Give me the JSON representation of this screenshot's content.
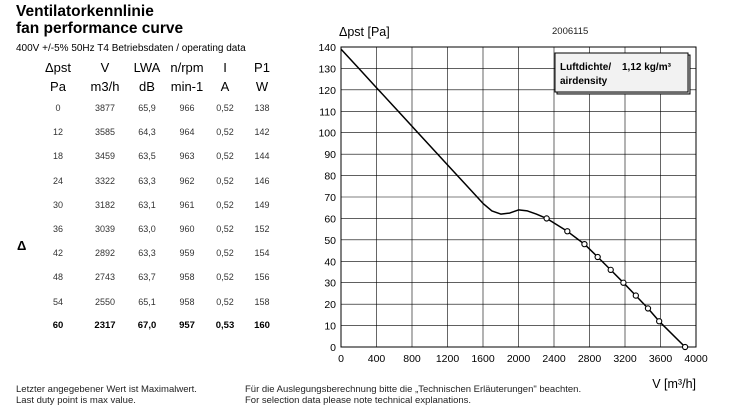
{
  "header": {
    "title_de": "Ventilatorkennlinie",
    "title_en": "fan performance curve",
    "subtitle": "400V +/-5% 50Hz T4  Betriebsdaten / operating data",
    "delta_marker": "Δ"
  },
  "table": {
    "headers": [
      "Δpst",
      "V",
      "LWA",
      "n/rpm",
      "I",
      "P1"
    ],
    "units": [
      "Pa",
      "m3/h",
      "dB",
      "min-1",
      "A",
      "W"
    ],
    "rows": [
      [
        "0",
        "3877",
        "65,9",
        "966",
        "0,52",
        "138"
      ],
      [
        "12",
        "3585",
        "64,3",
        "964",
        "0,52",
        "142"
      ],
      [
        "18",
        "3459",
        "63,5",
        "963",
        "0,52",
        "144"
      ],
      [
        "24",
        "3322",
        "63,3",
        "962",
        "0,52",
        "146"
      ],
      [
        "30",
        "3182",
        "63,1",
        "961",
        "0,52",
        "149"
      ],
      [
        "36",
        "3039",
        "63,0",
        "960",
        "0,52",
        "152"
      ],
      [
        "42",
        "2892",
        "63,3",
        "959",
        "0,52",
        "154"
      ],
      [
        "48",
        "2743",
        "63,7",
        "958",
        "0,52",
        "156"
      ],
      [
        "54",
        "2550",
        "65,1",
        "958",
        "0,52",
        "158"
      ],
      [
        "60",
        "2317",
        "67,0",
        "957",
        "0,53",
        "160"
      ]
    ]
  },
  "footer": {
    "left_line1": "Letzter angegebener Wert ist Maximalwert.",
    "left_line2": "Last duty point is max value.",
    "right_line1": "Für die Auslegungsberechnung bitte die „Technischen Erläuterungen\" beachten.",
    "right_line2": "For selection data please note technical explanations."
  },
  "chart_data": {
    "type": "line",
    "code": "2006115",
    "ylabel": "Δpst [Pa]",
    "xlabel": "V [m³/h]",
    "xlim": [
      0,
      4000
    ],
    "ylim": [
      0,
      140
    ],
    "xticks": [
      0,
      400,
      800,
      1200,
      1600,
      2000,
      2400,
      2800,
      3200,
      3600,
      4000
    ],
    "yticks": [
      0,
      10,
      20,
      30,
      40,
      50,
      60,
      70,
      80,
      90,
      100,
      110,
      120,
      130,
      140
    ],
    "grid": true,
    "legend": {
      "line1_label": "Luftdichte/",
      "line1_value": "1,12 kg/m³",
      "line2_label": "airdensity",
      "placement": "top-right"
    },
    "curve": {
      "x": [
        0,
        200,
        400,
        600,
        800,
        1000,
        1200,
        1400,
        1600,
        1700,
        1800,
        1900,
        2000,
        2100,
        2200,
        2317,
        2550,
        2743,
        2892,
        3039,
        3182,
        3322,
        3459,
        3585,
        3877
      ],
      "y": [
        139,
        130,
        121,
        112,
        103,
        94,
        85,
        76,
        67,
        63.5,
        62,
        62.5,
        64,
        63.5,
        62,
        60,
        54,
        48,
        42,
        36,
        30,
        24,
        18,
        12,
        0
      ]
    },
    "operating_points": {
      "x": [
        2317,
        2550,
        2743,
        2892,
        3039,
        3182,
        3322,
        3459,
        3585,
        3877
      ],
      "y": [
        60,
        54,
        48,
        42,
        36,
        30,
        24,
        18,
        12,
        0
      ]
    }
  }
}
